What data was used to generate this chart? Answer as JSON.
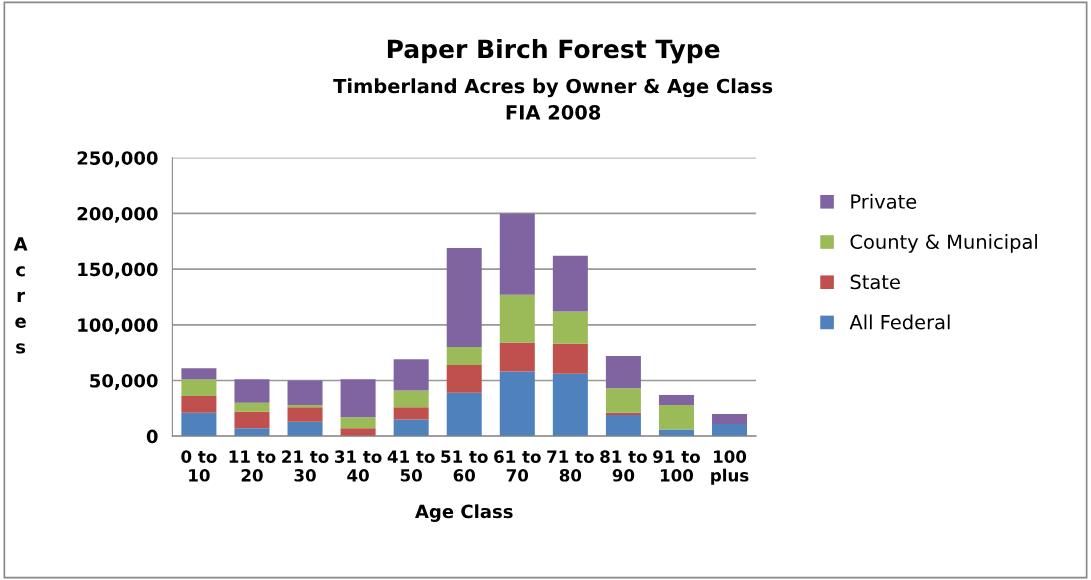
{
  "chart_data": {
    "type": "bar",
    "title": "Paper Birch Forest Type",
    "subtitle": "Timberland Acres by Owner & Age Class\nFIA 2008",
    "xlabel": "Age Class",
    "ylabel": "Acres",
    "categories": [
      "0 to 10",
      "11 to 20",
      "21 to 30",
      "31 to 40",
      "41 to 50",
      "51 to 60",
      "61 to 70",
      "71 to 80",
      "81 to 90",
      "91 to 100",
      "100 plus"
    ],
    "stacked": true,
    "series": [
      {
        "name": "All Federal",
        "color": "#4f81bd",
        "values": [
          21000,
          7000,
          13000,
          0,
          15000,
          39000,
          58000,
          56000,
          19000,
          6000,
          11000
        ]
      },
      {
        "name": "State",
        "color": "#c0504d",
        "values": [
          15000,
          15000,
          13000,
          7000,
          11000,
          25000,
          26000,
          27000,
          2000,
          0,
          0
        ]
      },
      {
        "name": "County & Municipal",
        "color": "#9bbb59",
        "values": [
          15000,
          8000,
          2000,
          10000,
          15000,
          16000,
          43000,
          29000,
          22000,
          22000,
          0
        ]
      },
      {
        "name": "Private",
        "color": "#8064a2",
        "values": [
          10000,
          21000,
          22000,
          34000,
          28000,
          89000,
          73000,
          50000,
          29000,
          9000,
          9000
        ]
      }
    ],
    "ylim": [
      0,
      250000
    ],
    "yticks": [
      {
        "value": 0,
        "label": "0"
      },
      {
        "value": 50000,
        "label": "50,000"
      },
      {
        "value": 100000,
        "label": "100,000"
      },
      {
        "value": 150000,
        "label": "150,000"
      },
      {
        "value": 200000,
        "label": "200,000"
      },
      {
        "value": 250000,
        "label": "250,000"
      }
    ],
    "grid": "y",
    "legend": "right"
  }
}
